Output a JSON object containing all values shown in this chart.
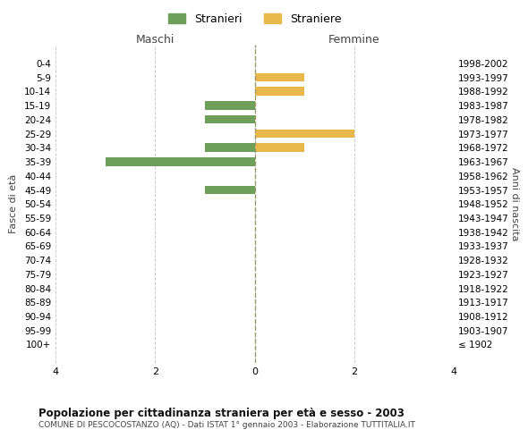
{
  "age_groups": [
    "100+",
    "95-99",
    "90-94",
    "85-89",
    "80-84",
    "75-79",
    "70-74",
    "65-69",
    "60-64",
    "55-59",
    "50-54",
    "45-49",
    "40-44",
    "35-39",
    "30-34",
    "25-29",
    "20-24",
    "15-19",
    "10-14",
    "5-9",
    "0-4"
  ],
  "birth_years": [
    "≤ 1902",
    "1903-1907",
    "1908-1912",
    "1913-1917",
    "1918-1922",
    "1923-1927",
    "1928-1932",
    "1933-1937",
    "1938-1942",
    "1943-1947",
    "1948-1952",
    "1953-1957",
    "1958-1962",
    "1963-1967",
    "1968-1972",
    "1973-1977",
    "1978-1982",
    "1983-1987",
    "1988-1992",
    "1993-1997",
    "1998-2002"
  ],
  "male_values": [
    0,
    0,
    0,
    0,
    0,
    0,
    0,
    0,
    0,
    0,
    0,
    1,
    0,
    3,
    1,
    0,
    1,
    1,
    0,
    0,
    0
  ],
  "female_values": [
    0,
    0,
    0,
    0,
    0,
    0,
    0,
    0,
    0,
    0,
    0,
    0,
    0,
    0,
    1,
    2,
    0,
    0,
    1,
    1,
    0
  ],
  "male_color": "#6d9e5a",
  "female_color": "#e8b84b",
  "legend_stranieri": "Stranieri",
  "legend_straniere": "Straniere",
  "title": "Popolazione per cittadinanza straniera per età e sesso - 2003",
  "subtitle": "COMUNE DI PESCOCOSTANZO (AQ) - Dati ISTAT 1° gennaio 2003 - Elaborazione TUTTITALIA.IT",
  "ylabel_left": "Fasce di età",
  "ylabel_right": "Anni di nascita",
  "xlabel_left": "Maschi",
  "xlabel_right": "Femmine",
  "xlim": 4,
  "background_color": "#ffffff",
  "grid_color": "#cccccc"
}
